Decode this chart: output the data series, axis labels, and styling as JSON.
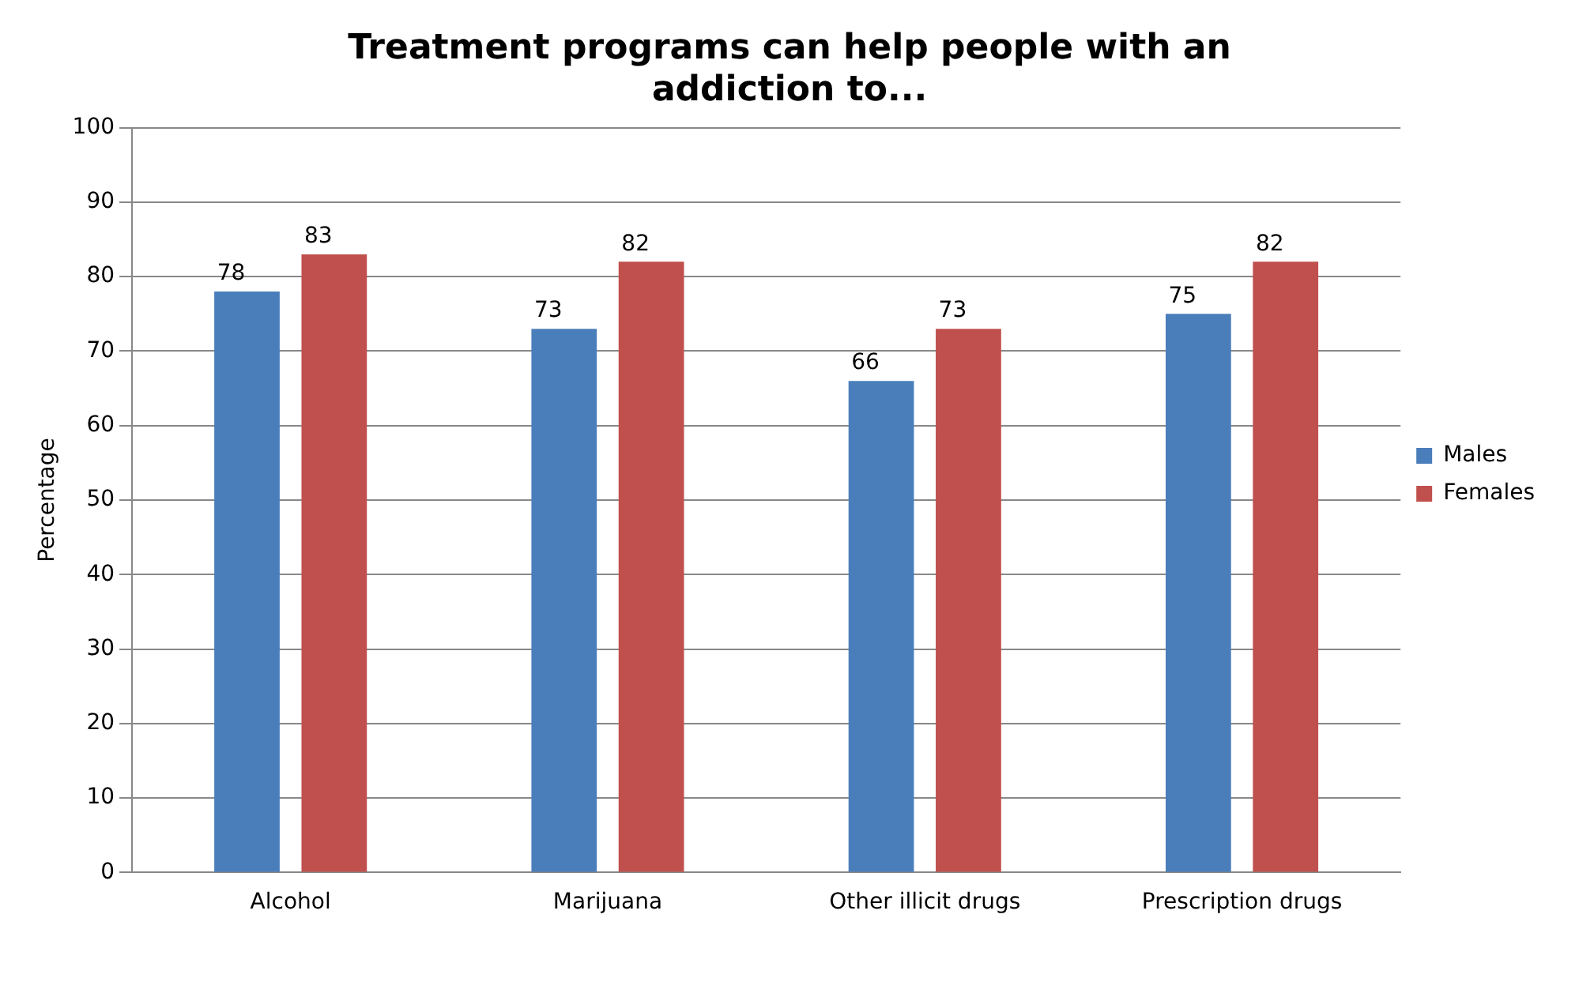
{
  "chart_data": {
    "type": "bar",
    "title": "Treatment programs can help people with an addiction to...",
    "ylabel": "Percentage",
    "categories": [
      "Alcohol",
      "Marijuana",
      "Other illicit drugs",
      "Prescription drugs"
    ],
    "series": [
      {
        "name": "Males",
        "color": "#4a7ebb",
        "values": [
          78,
          73,
          66,
          75
        ]
      },
      {
        "name": "Females",
        "color": "#c0504d",
        "values": [
          83,
          82,
          73,
          82
        ]
      }
    ],
    "ylim": [
      0,
      100
    ],
    "yticks": [
      0,
      10,
      20,
      30,
      40,
      50,
      60,
      70,
      80,
      90,
      100
    ],
    "grid": "y",
    "legend": "right",
    "data_labels": true
  }
}
